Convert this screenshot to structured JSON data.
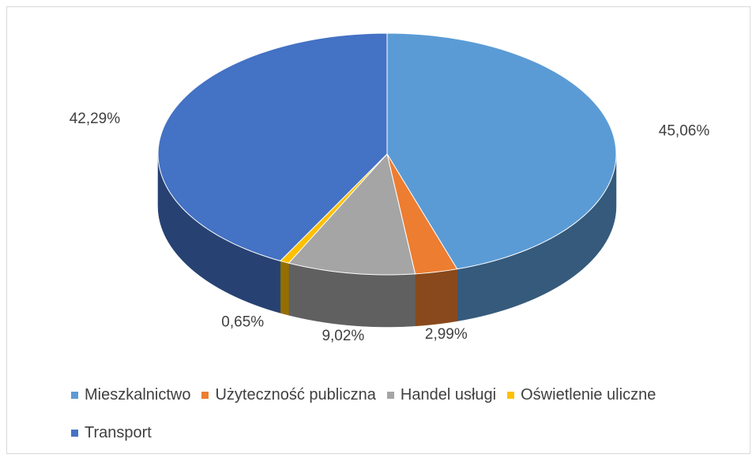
{
  "chart_data": {
    "type": "pie",
    "categories": [
      "Mieszkalnictwo",
      "Użyteczność publiczna",
      "Handel usługi",
      "Oświetlenie uliczne",
      "Transport"
    ],
    "values": [
      45.06,
      2.99,
      9.02,
      0.65,
      42.29
    ],
    "value_labels": [
      "45,06%",
      "2,99%",
      "9,02%",
      "0,65%",
      "42,29%"
    ],
    "colors": [
      "#5b9bd5",
      "#ed7d31",
      "#a5a5a5",
      "#ffc000",
      "#4472c4"
    ],
    "legend": "bottom"
  }
}
